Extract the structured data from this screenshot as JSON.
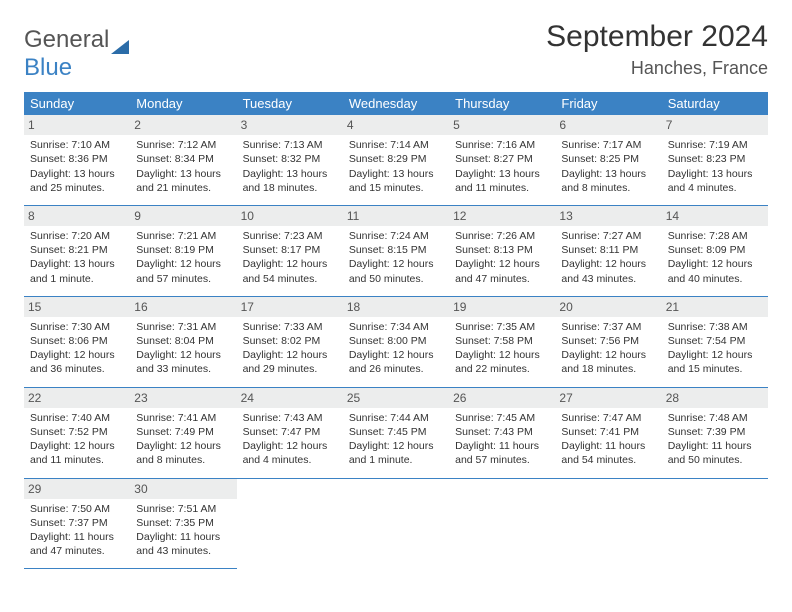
{
  "logo": {
    "text1": "General",
    "text2": "Blue"
  },
  "title": "September 2024",
  "location": "Hanches, France",
  "weekdays": [
    "Sunday",
    "Monday",
    "Tuesday",
    "Wednesday",
    "Thursday",
    "Friday",
    "Saturday"
  ],
  "weeks": [
    [
      {
        "n": "1",
        "sr": "Sunrise: 7:10 AM",
        "ss": "Sunset: 8:36 PM",
        "d1": "Daylight: 13 hours",
        "d2": "and 25 minutes."
      },
      {
        "n": "2",
        "sr": "Sunrise: 7:12 AM",
        "ss": "Sunset: 8:34 PM",
        "d1": "Daylight: 13 hours",
        "d2": "and 21 minutes."
      },
      {
        "n": "3",
        "sr": "Sunrise: 7:13 AM",
        "ss": "Sunset: 8:32 PM",
        "d1": "Daylight: 13 hours",
        "d2": "and 18 minutes."
      },
      {
        "n": "4",
        "sr": "Sunrise: 7:14 AM",
        "ss": "Sunset: 8:29 PM",
        "d1": "Daylight: 13 hours",
        "d2": "and 15 minutes."
      },
      {
        "n": "5",
        "sr": "Sunrise: 7:16 AM",
        "ss": "Sunset: 8:27 PM",
        "d1": "Daylight: 13 hours",
        "d2": "and 11 minutes."
      },
      {
        "n": "6",
        "sr": "Sunrise: 7:17 AM",
        "ss": "Sunset: 8:25 PM",
        "d1": "Daylight: 13 hours",
        "d2": "and 8 minutes."
      },
      {
        "n": "7",
        "sr": "Sunrise: 7:19 AM",
        "ss": "Sunset: 8:23 PM",
        "d1": "Daylight: 13 hours",
        "d2": "and 4 minutes."
      }
    ],
    [
      {
        "n": "8",
        "sr": "Sunrise: 7:20 AM",
        "ss": "Sunset: 8:21 PM",
        "d1": "Daylight: 13 hours",
        "d2": "and 1 minute."
      },
      {
        "n": "9",
        "sr": "Sunrise: 7:21 AM",
        "ss": "Sunset: 8:19 PM",
        "d1": "Daylight: 12 hours",
        "d2": "and 57 minutes."
      },
      {
        "n": "10",
        "sr": "Sunrise: 7:23 AM",
        "ss": "Sunset: 8:17 PM",
        "d1": "Daylight: 12 hours",
        "d2": "and 54 minutes."
      },
      {
        "n": "11",
        "sr": "Sunrise: 7:24 AM",
        "ss": "Sunset: 8:15 PM",
        "d1": "Daylight: 12 hours",
        "d2": "and 50 minutes."
      },
      {
        "n": "12",
        "sr": "Sunrise: 7:26 AM",
        "ss": "Sunset: 8:13 PM",
        "d1": "Daylight: 12 hours",
        "d2": "and 47 minutes."
      },
      {
        "n": "13",
        "sr": "Sunrise: 7:27 AM",
        "ss": "Sunset: 8:11 PM",
        "d1": "Daylight: 12 hours",
        "d2": "and 43 minutes."
      },
      {
        "n": "14",
        "sr": "Sunrise: 7:28 AM",
        "ss": "Sunset: 8:09 PM",
        "d1": "Daylight: 12 hours",
        "d2": "and 40 minutes."
      }
    ],
    [
      {
        "n": "15",
        "sr": "Sunrise: 7:30 AM",
        "ss": "Sunset: 8:06 PM",
        "d1": "Daylight: 12 hours",
        "d2": "and 36 minutes."
      },
      {
        "n": "16",
        "sr": "Sunrise: 7:31 AM",
        "ss": "Sunset: 8:04 PM",
        "d1": "Daylight: 12 hours",
        "d2": "and 33 minutes."
      },
      {
        "n": "17",
        "sr": "Sunrise: 7:33 AM",
        "ss": "Sunset: 8:02 PM",
        "d1": "Daylight: 12 hours",
        "d2": "and 29 minutes."
      },
      {
        "n": "18",
        "sr": "Sunrise: 7:34 AM",
        "ss": "Sunset: 8:00 PM",
        "d1": "Daylight: 12 hours",
        "d2": "and 26 minutes."
      },
      {
        "n": "19",
        "sr": "Sunrise: 7:35 AM",
        "ss": "Sunset: 7:58 PM",
        "d1": "Daylight: 12 hours",
        "d2": "and 22 minutes."
      },
      {
        "n": "20",
        "sr": "Sunrise: 7:37 AM",
        "ss": "Sunset: 7:56 PM",
        "d1": "Daylight: 12 hours",
        "d2": "and 18 minutes."
      },
      {
        "n": "21",
        "sr": "Sunrise: 7:38 AM",
        "ss": "Sunset: 7:54 PM",
        "d1": "Daylight: 12 hours",
        "d2": "and 15 minutes."
      }
    ],
    [
      {
        "n": "22",
        "sr": "Sunrise: 7:40 AM",
        "ss": "Sunset: 7:52 PM",
        "d1": "Daylight: 12 hours",
        "d2": "and 11 minutes."
      },
      {
        "n": "23",
        "sr": "Sunrise: 7:41 AM",
        "ss": "Sunset: 7:49 PM",
        "d1": "Daylight: 12 hours",
        "d2": "and 8 minutes."
      },
      {
        "n": "24",
        "sr": "Sunrise: 7:43 AM",
        "ss": "Sunset: 7:47 PM",
        "d1": "Daylight: 12 hours",
        "d2": "and 4 minutes."
      },
      {
        "n": "25",
        "sr": "Sunrise: 7:44 AM",
        "ss": "Sunset: 7:45 PM",
        "d1": "Daylight: 12 hours",
        "d2": "and 1 minute."
      },
      {
        "n": "26",
        "sr": "Sunrise: 7:45 AM",
        "ss": "Sunset: 7:43 PM",
        "d1": "Daylight: 11 hours",
        "d2": "and 57 minutes."
      },
      {
        "n": "27",
        "sr": "Sunrise: 7:47 AM",
        "ss": "Sunset: 7:41 PM",
        "d1": "Daylight: 11 hours",
        "d2": "and 54 minutes."
      },
      {
        "n": "28",
        "sr": "Sunrise: 7:48 AM",
        "ss": "Sunset: 7:39 PM",
        "d1": "Daylight: 11 hours",
        "d2": "and 50 minutes."
      }
    ],
    [
      {
        "n": "29",
        "sr": "Sunrise: 7:50 AM",
        "ss": "Sunset: 7:37 PM",
        "d1": "Daylight: 11 hours",
        "d2": "and 47 minutes."
      },
      {
        "n": "30",
        "sr": "Sunrise: 7:51 AM",
        "ss": "Sunset: 7:35 PM",
        "d1": "Daylight: 11 hours",
        "d2": "and 43 minutes."
      },
      null,
      null,
      null,
      null,
      null
    ]
  ]
}
